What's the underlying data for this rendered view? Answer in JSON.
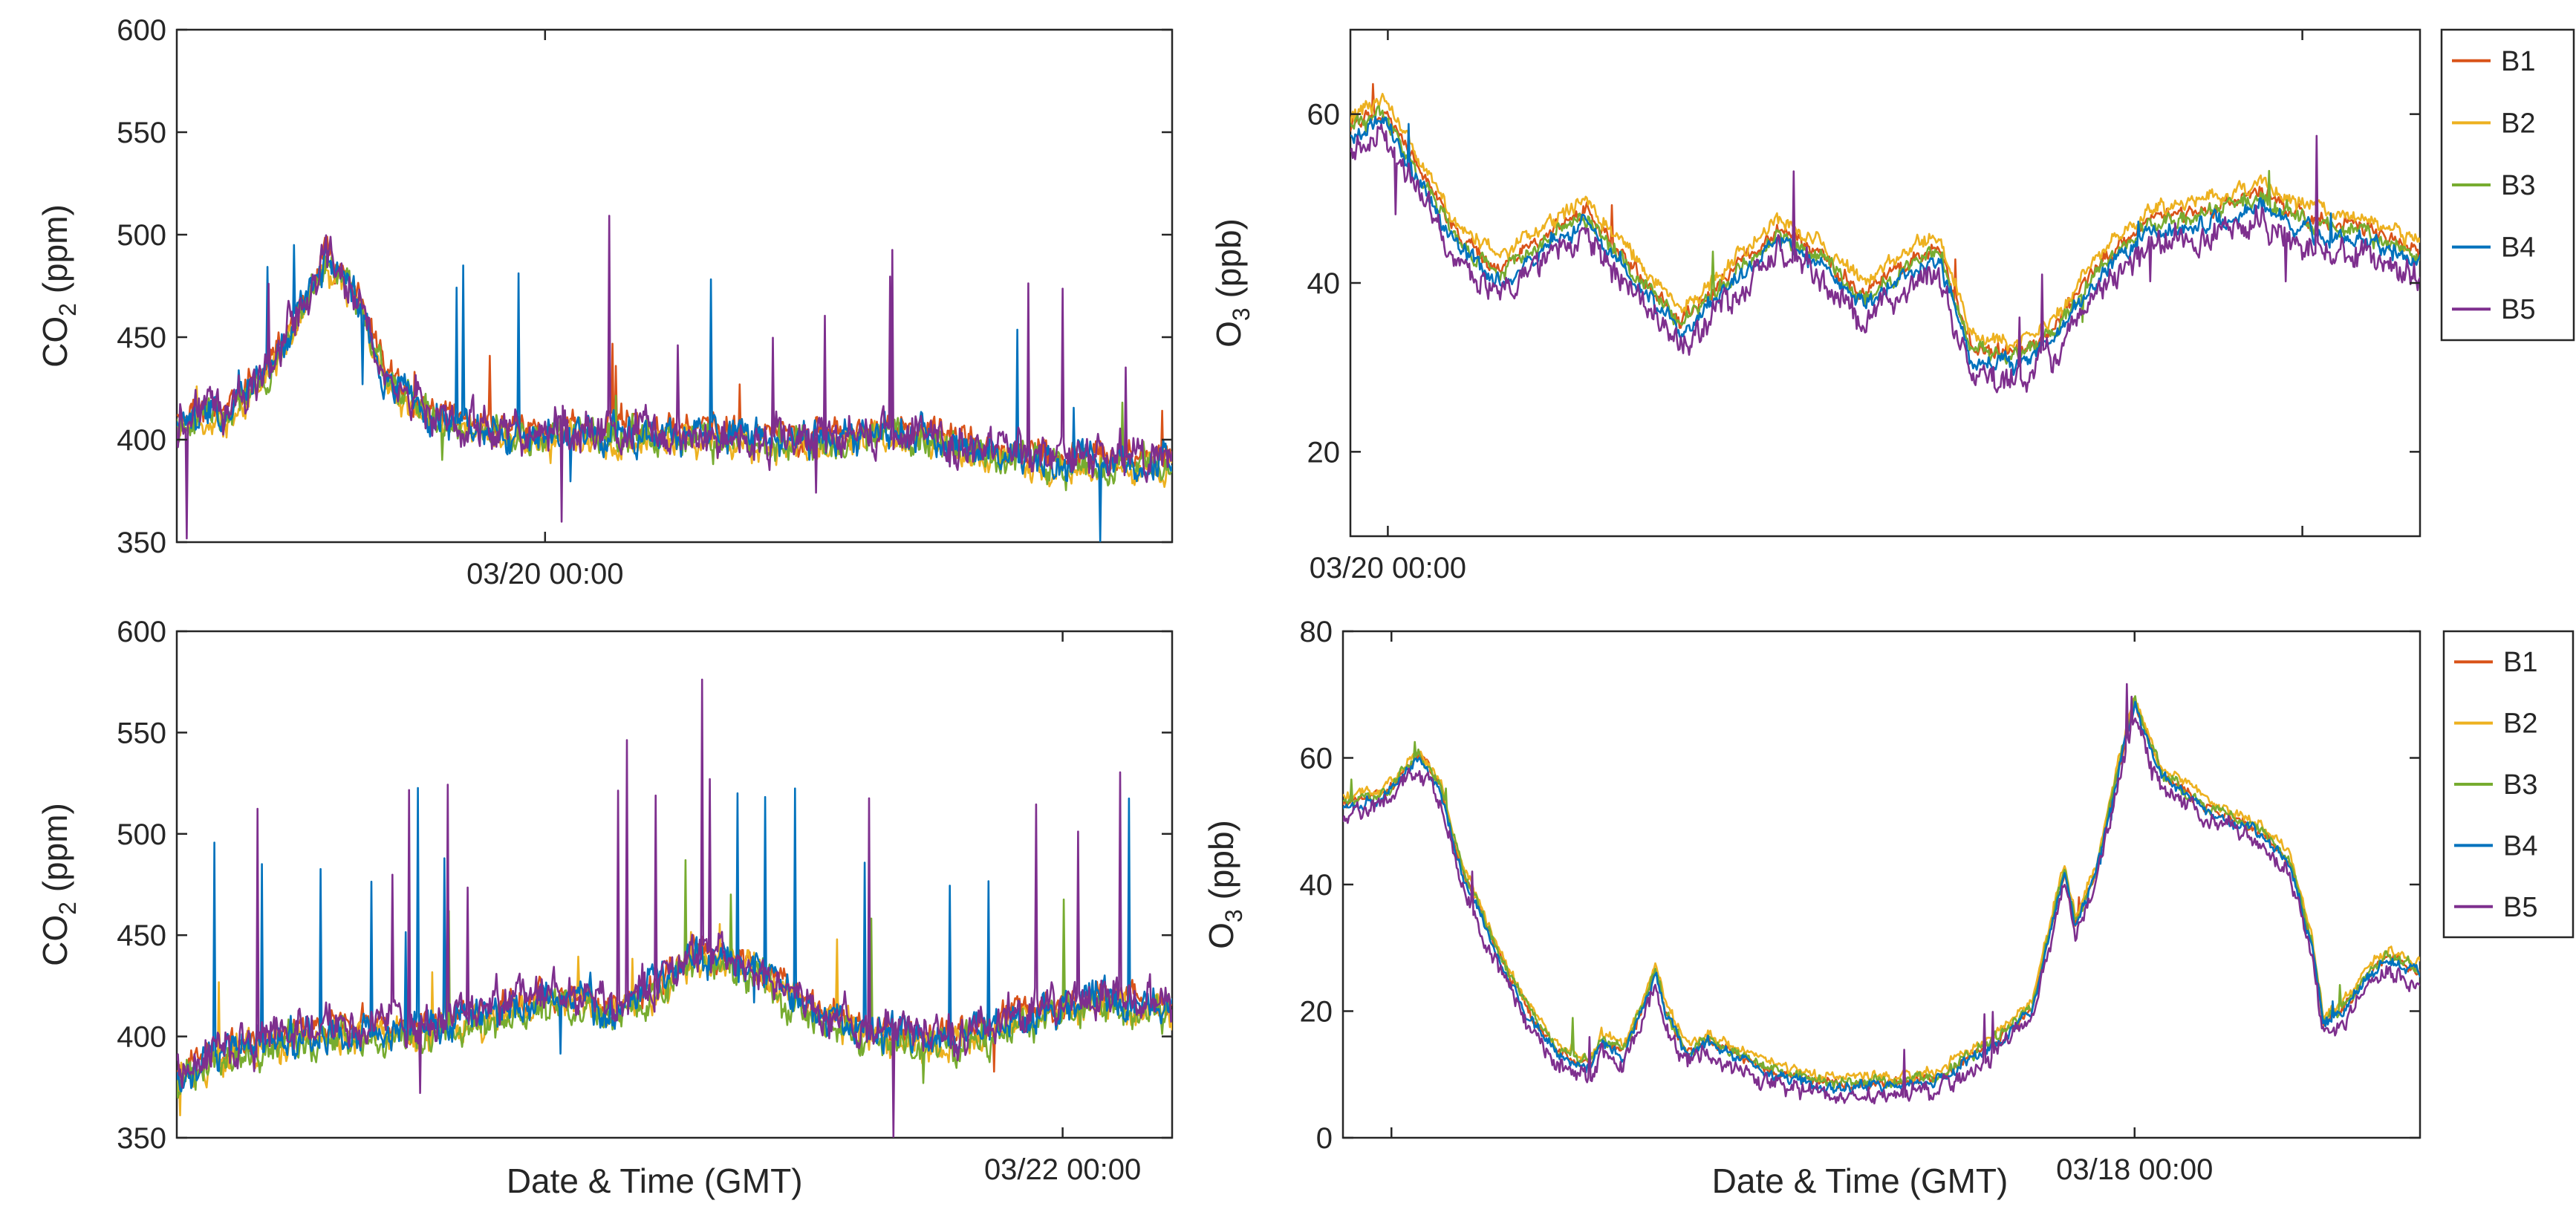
{
  "figure": {
    "series_colors": {
      "B1": "#d95319",
      "B2": "#edb120",
      "B3": "#77ac30",
      "B4": "#0072bd",
      "B5": "#7e2f8e"
    }
  },
  "chart_data": [
    {
      "id": "co2_top",
      "type": "line",
      "title": "",
      "xlabel": "",
      "ylabel_main": "CO",
      "ylabel_sub": "2",
      "ylabel_unit": " (ppm)",
      "ylim": [
        350,
        600
      ],
      "yticks": [
        350,
        400,
        450,
        500,
        550,
        600
      ],
      "xlim": [
        0,
        100
      ],
      "xticks": [
        {
          "x": 37,
          "label": "03/20 00:00"
        }
      ],
      "legend": null,
      "series_shapes": [
        {
          "name": "B1",
          "noise": 7,
          "spike_prob": 0.004,
          "spike_amp": 40,
          "offset": 2,
          "seed": 11
        },
        {
          "name": "B2",
          "noise": 7,
          "spike_prob": 0.004,
          "spike_amp": 40,
          "offset": -4,
          "seed": 12
        },
        {
          "name": "B3",
          "noise": 8,
          "spike_prob": 0.004,
          "spike_amp": 40,
          "offset": -2,
          "seed": 13
        },
        {
          "name": "B4",
          "noise": 8,
          "spike_prob": 0.01,
          "spike_amp": 80,
          "offset": 0,
          "seed": 14
        },
        {
          "name": "B5",
          "noise": 10,
          "spike_prob": 0.012,
          "spike_amp": 110,
          "offset": 1,
          "seed": 15
        }
      ],
      "baseline": [
        [
          0,
          408
        ],
        [
          5,
          415
        ],
        [
          10,
          440
        ],
        [
          13,
          470
        ],
        [
          15,
          488
        ],
        [
          18,
          470
        ],
        [
          21,
          430
        ],
        [
          26,
          410
        ],
        [
          35,
          402
        ],
        [
          45,
          404
        ],
        [
          55,
          402
        ],
        [
          65,
          400
        ],
        [
          72,
          406
        ],
        [
          78,
          398
        ],
        [
          85,
          392
        ],
        [
          92,
          390
        ],
        [
          100,
          390
        ]
      ]
    },
    {
      "id": "o3_top",
      "type": "line",
      "title": "",
      "xlabel": "",
      "ylabel_main": "O",
      "ylabel_sub": "3",
      "ylabel_unit": " (ppb)",
      "ylim": [
        10,
        70
      ],
      "yticks": [
        20,
        40,
        60
      ],
      "xlim": [
        0,
        100
      ],
      "xticks": [
        {
          "x": 3.5,
          "label": "03/20 00:00"
        },
        {
          "x": 89,
          "label": ""
        }
      ],
      "legend": {
        "entries": [
          "B1",
          "B2",
          "B3",
          "B4",
          "B5"
        ],
        "location": "outside-right"
      },
      "series_shapes": [
        {
          "name": "B1",
          "noise": 0.9,
          "spike_prob": 0.002,
          "spike_amp": 5,
          "offset": 0.5,
          "seed": 21
        },
        {
          "name": "B2",
          "noise": 0.9,
          "spike_prob": 0.002,
          "spike_amp": 5,
          "offset": 1.8,
          "seed": 22
        },
        {
          "name": "B3",
          "noise": 1.0,
          "spike_prob": 0.004,
          "spike_amp": 8,
          "offset": 0.0,
          "seed": 23
        },
        {
          "name": "B4",
          "noise": 1.0,
          "spike_prob": 0.003,
          "spike_amp": 6,
          "offset": -1.0,
          "seed": 24
        },
        {
          "name": "B5",
          "noise": 1.6,
          "spike_prob": 0.01,
          "spike_amp": 14,
          "offset": -2.5,
          "seed": 25
        }
      ],
      "baseline": [
        [
          0,
          58
        ],
        [
          3,
          60
        ],
        [
          6,
          54
        ],
        [
          10,
          45
        ],
        [
          14,
          41
        ],
        [
          19,
          46
        ],
        [
          22,
          48
        ],
        [
          26,
          42
        ],
        [
          31,
          35
        ],
        [
          35,
          40
        ],
        [
          40,
          46
        ],
        [
          44,
          43
        ],
        [
          48,
          38
        ],
        [
          52,
          42
        ],
        [
          55,
          44
        ],
        [
          58,
          32
        ],
        [
          62,
          31
        ],
        [
          66,
          34
        ],
        [
          70,
          42
        ],
        [
          75,
          47
        ],
        [
          80,
          48
        ],
        [
          85,
          50
        ],
        [
          90,
          47
        ],
        [
          95,
          46
        ],
        [
          100,
          43
        ]
      ]
    },
    {
      "id": "co2_bottom",
      "type": "line",
      "title": "",
      "xlabel": "Date & Time (GMT)",
      "ylabel_main": "CO",
      "ylabel_sub": "2",
      "ylabel_unit": " (ppm)",
      "ylim": [
        350,
        600
      ],
      "yticks": [
        350,
        400,
        450,
        500,
        550,
        600
      ],
      "xlim": [
        0,
        100
      ],
      "xticks": [
        {
          "x": 89,
          "label": "03/22 00:00"
        }
      ],
      "legend": null,
      "series_shapes": [
        {
          "name": "B1",
          "noise": 7,
          "spike_prob": 0.004,
          "spike_amp": 40,
          "offset": 2,
          "seed": 31
        },
        {
          "name": "B2",
          "noise": 8,
          "spike_prob": 0.004,
          "spike_amp": 40,
          "offset": -2,
          "seed": 32
        },
        {
          "name": "B3",
          "noise": 8,
          "spike_prob": 0.006,
          "spike_amp": 60,
          "offset": -4,
          "seed": 33
        },
        {
          "name": "B4",
          "noise": 9,
          "spike_prob": 0.016,
          "spike_amp": 120,
          "offset": 0,
          "seed": 34
        },
        {
          "name": "B5",
          "noise": 10,
          "spike_prob": 0.02,
          "spike_amp": 140,
          "offset": 2,
          "seed": 35
        }
      ],
      "baseline": [
        [
          0,
          382
        ],
        [
          6,
          395
        ],
        [
          15,
          402
        ],
        [
          25,
          404
        ],
        [
          33,
          415
        ],
        [
          40,
          420
        ],
        [
          44,
          412
        ],
        [
          48,
          425
        ],
        [
          52,
          440
        ],
        [
          58,
          435
        ],
        [
          63,
          415
        ],
        [
          70,
          403
        ],
        [
          75,
          398
        ],
        [
          80,
          402
        ],
        [
          86,
          412
        ],
        [
          92,
          418
        ],
        [
          100,
          415
        ]
      ]
    },
    {
      "id": "o3_bottom",
      "type": "line",
      "title": "",
      "xlabel": "Date & Time (GMT)",
      "ylabel_main": "O",
      "ylabel_sub": "3",
      "ylabel_unit": " (ppb)",
      "ylim": [
        0,
        80
      ],
      "yticks": [
        0,
        20,
        40,
        60,
        80
      ],
      "xlim": [
        0,
        100
      ],
      "xticks": [
        {
          "x": 4.5,
          "label": ""
        },
        {
          "x": 73.5,
          "label": "03/18 00:00"
        }
      ],
      "legend": {
        "entries": [
          "B1",
          "B2",
          "B3",
          "B4",
          "B5"
        ],
        "location": "outside-right"
      },
      "series_shapes": [
        {
          "name": "B1",
          "noise": 0.8,
          "spike_prob": 0.002,
          "spike_amp": 4,
          "offset": 0.5,
          "seed": 41
        },
        {
          "name": "B2",
          "noise": 0.8,
          "spike_prob": 0.002,
          "spike_amp": 4,
          "offset": 1.5,
          "seed": 42
        },
        {
          "name": "B3",
          "noise": 0.9,
          "spike_prob": 0.003,
          "spike_amp": 6,
          "offset": 0.8,
          "seed": 43
        },
        {
          "name": "B4",
          "noise": 0.9,
          "spike_prob": 0.003,
          "spike_amp": 6,
          "offset": 0.0,
          "seed": 44
        },
        {
          "name": "B5",
          "noise": 1.4,
          "spike_prob": 0.008,
          "spike_amp": 10,
          "offset": -1.5,
          "seed": 45
        }
      ],
      "baseline": [
        [
          0,
          52
        ],
        [
          4,
          54
        ],
        [
          7,
          60
        ],
        [
          9,
          55
        ],
        [
          11,
          42
        ],
        [
          14,
          30
        ],
        [
          17,
          20
        ],
        [
          20,
          13
        ],
        [
          23,
          11
        ],
        [
          24,
          15
        ],
        [
          26,
          13
        ],
        [
          28,
          21
        ],
        [
          29,
          26
        ],
        [
          30,
          19
        ],
        [
          32,
          13
        ],
        [
          34,
          15
        ],
        [
          36,
          13
        ],
        [
          40,
          10
        ],
        [
          45,
          8
        ],
        [
          50,
          8
        ],
        [
          55,
          9
        ],
        [
          60,
          14
        ],
        [
          64,
          20
        ],
        [
          66,
          35
        ],
        [
          67,
          42
        ],
        [
          68,
          33
        ],
        [
          70,
          42
        ],
        [
          72,
          58
        ],
        [
          73.5,
          68
        ],
        [
          76,
          57
        ],
        [
          80,
          52
        ],
        [
          85,
          48
        ],
        [
          88,
          43
        ],
        [
          90,
          30
        ],
        [
          91,
          18
        ],
        [
          93,
          20
        ],
        [
          95,
          25
        ],
        [
          97,
          28
        ],
        [
          100,
          26
        ]
      ]
    }
  ]
}
